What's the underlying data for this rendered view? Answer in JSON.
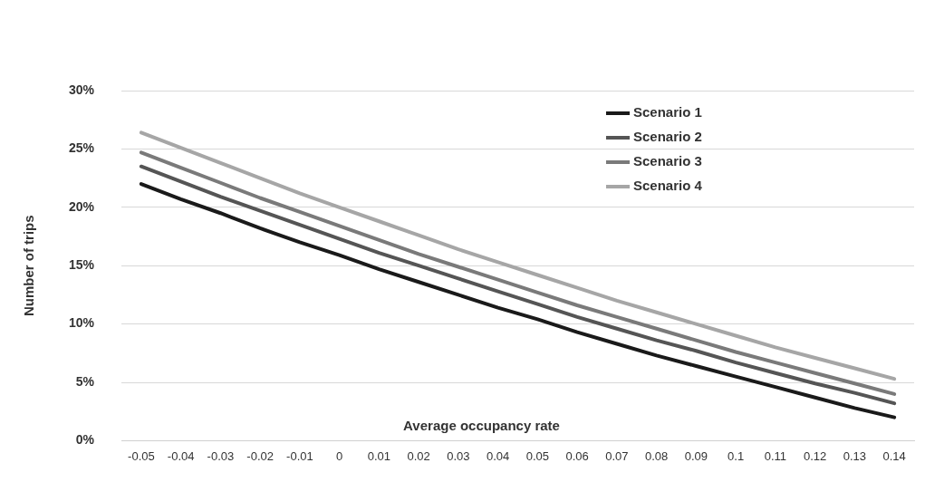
{
  "chart_data": {
    "type": "line",
    "xlabel": "Average occupancy rate",
    "ylabel": "Number of trips",
    "categories": [
      "-0.05",
      "-0.04",
      "-0.03",
      "-0.02",
      "-0.01",
      "0",
      "0.01",
      "0.02",
      "0.03",
      "0.04",
      "0.05",
      "0.06",
      "0.07",
      "0.08",
      "0.09",
      "0.1",
      "0.11",
      "0.12",
      "0.13",
      "0.14"
    ],
    "series": [
      {
        "name": "Scenario 1",
        "color": "#1a1a1a",
        "values": [
          22.0,
          20.7,
          19.5,
          18.2,
          17.0,
          15.9,
          14.7,
          13.6,
          12.5,
          11.4,
          10.4,
          9.3,
          8.3,
          7.3,
          6.4,
          5.5,
          4.6,
          3.7,
          2.8,
          2.0
        ]
      },
      {
        "name": "Scenario 2",
        "color": "#555555",
        "values": [
          23.5,
          22.2,
          20.9,
          19.7,
          18.5,
          17.3,
          16.1,
          15.0,
          13.9,
          12.8,
          11.7,
          10.6,
          9.6,
          8.6,
          7.7,
          6.7,
          5.8,
          4.9,
          4.1,
          3.2
        ]
      },
      {
        "name": "Scenario 3",
        "color": "#7a7a7a",
        "values": [
          24.7,
          23.4,
          22.1,
          20.8,
          19.6,
          18.4,
          17.2,
          16.0,
          14.9,
          13.8,
          12.7,
          11.6,
          10.6,
          9.6,
          8.6,
          7.6,
          6.7,
          5.8,
          4.9,
          4.0
        ]
      },
      {
        "name": "Scenario 4",
        "color": "#a6a6a6",
        "values": [
          26.4,
          25.1,
          23.8,
          22.5,
          21.2,
          20.0,
          18.8,
          17.6,
          16.4,
          15.3,
          14.2,
          13.1,
          12.0,
          11.0,
          10.0,
          9.0,
          8.0,
          7.1,
          6.2,
          5.3
        ]
      }
    ],
    "ylim": [
      0,
      30
    ],
    "yticks": [
      {
        "value": 0,
        "label": "0%"
      },
      {
        "value": 5,
        "label": "5%"
      },
      {
        "value": 10,
        "label": "10%"
      },
      {
        "value": 15,
        "label": "15%"
      },
      {
        "value": 20,
        "label": "20%"
      },
      {
        "value": 25,
        "label": "25%"
      },
      {
        "value": 30,
        "label": "30%"
      }
    ],
    "grid": "y",
    "legend": "top right",
    "marker": "none",
    "line_style": "solid"
  }
}
